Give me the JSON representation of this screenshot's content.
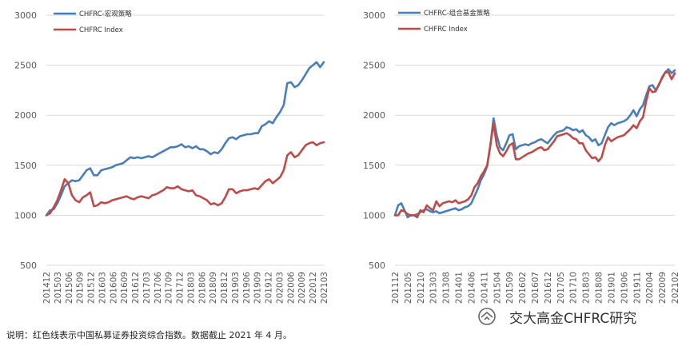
{
  "colors": {
    "blue": "#4a7ebb",
    "red": "#be4b48",
    "grid": "#d9d9d9",
    "tick": "#595959"
  },
  "note": "说明：红色线表示中国私募证券投资综合指数。数据截止 2021 年 4 月。",
  "watermark": "交大高金CHFRC研究",
  "chart_data": [
    {
      "type": "line",
      "ylim": [
        500,
        3000
      ],
      "yticks": [
        500,
        1000,
        1500,
        2000,
        2500,
        3000
      ],
      "x_labels": [
        "201412",
        "201503",
        "201506",
        "201509",
        "201512",
        "201603",
        "201606",
        "201609",
        "201612",
        "201703",
        "201706",
        "201709",
        "201712",
        "201803",
        "201806",
        "201809",
        "201812",
        "201903",
        "201906",
        "201909",
        "201912",
        "202003",
        "202006",
        "202009",
        "202012",
        "202103"
      ],
      "legend_position": "top-left",
      "grid": "horizontal",
      "series": [
        {
          "name": "CHFRC-宏观策略",
          "color_key": "blue",
          "values": [
            1000,
            1050,
            1060,
            1120,
            1200,
            1290,
            1320,
            1350,
            1340,
            1350,
            1400,
            1450,
            1470,
            1400,
            1400,
            1450,
            1460,
            1470,
            1480,
            1500,
            1510,
            1520,
            1550,
            1580,
            1570,
            1580,
            1570,
            1580,
            1590,
            1580,
            1600,
            1620,
            1640,
            1660,
            1680,
            1680,
            1690,
            1710,
            1680,
            1690,
            1670,
            1690,
            1660,
            1660,
            1640,
            1610,
            1630,
            1620,
            1660,
            1720,
            1770,
            1780,
            1760,
            1790,
            1800,
            1810,
            1810,
            1820,
            1820,
            1890,
            1910,
            1940,
            1920,
            1980,
            2030,
            2100,
            2320,
            2330,
            2280,
            2300,
            2350,
            2410,
            2470,
            2500,
            2530,
            2480,
            2530
          ]
        },
        {
          "name": "CHFRC Index",
          "color_key": "red",
          "values": [
            1000,
            1020,
            1080,
            1150,
            1250,
            1360,
            1320,
            1200,
            1150,
            1130,
            1180,
            1200,
            1230,
            1090,
            1100,
            1130,
            1120,
            1130,
            1150,
            1160,
            1170,
            1180,
            1190,
            1170,
            1160,
            1180,
            1190,
            1180,
            1170,
            1200,
            1210,
            1230,
            1250,
            1280,
            1270,
            1270,
            1290,
            1260,
            1250,
            1240,
            1250,
            1200,
            1190,
            1170,
            1150,
            1110,
            1120,
            1100,
            1120,
            1180,
            1260,
            1260,
            1220,
            1240,
            1250,
            1250,
            1260,
            1270,
            1260,
            1300,
            1340,
            1360,
            1320,
            1350,
            1380,
            1450,
            1600,
            1630,
            1580,
            1600,
            1650,
            1700,
            1720,
            1730,
            1700,
            1720,
            1730
          ]
        }
      ]
    },
    {
      "type": "line",
      "ylim": [
        500,
        3000
      ],
      "yticks": [
        500,
        1000,
        1500,
        2000,
        2500,
        3000
      ],
      "x_labels": [
        "201112",
        "201205",
        "201210",
        "201303",
        "201308",
        "201401",
        "201406",
        "201411",
        "201504",
        "201509",
        "201602",
        "201607",
        "201612",
        "201705",
        "201710",
        "201803",
        "201808",
        "201901",
        "201906",
        "201911",
        "202004",
        "202009",
        "202102"
      ],
      "legend_position": "top-left",
      "grid": "horizontal",
      "series": [
        {
          "name": "CHFRC-组合基金策略",
          "color_key": "blue",
          "values": [
            1000,
            1100,
            1120,
            1050,
            980,
            1000,
            1000,
            1010,
            1030,
            1050,
            1060,
            1040,
            1030,
            1040,
            1020,
            1030,
            1040,
            1050,
            1060,
            1070,
            1050,
            1060,
            1080,
            1090,
            1120,
            1190,
            1260,
            1350,
            1410,
            1490,
            1700,
            1970,
            1800,
            1680,
            1650,
            1720,
            1800,
            1810,
            1660,
            1690,
            1700,
            1710,
            1700,
            1720,
            1730,
            1750,
            1760,
            1740,
            1720,
            1760,
            1800,
            1830,
            1840,
            1850,
            1880,
            1870,
            1850,
            1860,
            1830,
            1850,
            1800,
            1780,
            1740,
            1760,
            1700,
            1720,
            1800,
            1880,
            1920,
            1900,
            1920,
            1930,
            1940,
            1960,
            2000,
            2050,
            1990,
            2060,
            2100,
            2200,
            2290,
            2300,
            2250,
            2300,
            2380,
            2430,
            2460,
            2420,
            2450
          ]
        },
        {
          "name": "CHFRC Index",
          "color_key": "red",
          "values": [
            1000,
            1000,
            1050,
            1040,
            1010,
            1000,
            1000,
            980,
            1050,
            1030,
            1100,
            1070,
            1050,
            1140,
            1090,
            1120,
            1130,
            1140,
            1130,
            1150,
            1120,
            1130,
            1140,
            1160,
            1200,
            1280,
            1320,
            1390,
            1440,
            1500,
            1700,
            1920,
            1700,
            1620,
            1590,
            1640,
            1700,
            1720,
            1560,
            1560,
            1580,
            1600,
            1620,
            1630,
            1650,
            1670,
            1680,
            1650,
            1660,
            1700,
            1740,
            1790,
            1800,
            1810,
            1820,
            1800,
            1770,
            1760,
            1720,
            1720,
            1650,
            1610,
            1570,
            1580,
            1540,
            1580,
            1700,
            1780,
            1740,
            1760,
            1780,
            1790,
            1800,
            1830,
            1860,
            1900,
            1870,
            1940,
            1980,
            2140,
            2270,
            2230,
            2240,
            2310,
            2370,
            2430,
            2430,
            2360,
            2420
          ]
        }
      ]
    }
  ]
}
